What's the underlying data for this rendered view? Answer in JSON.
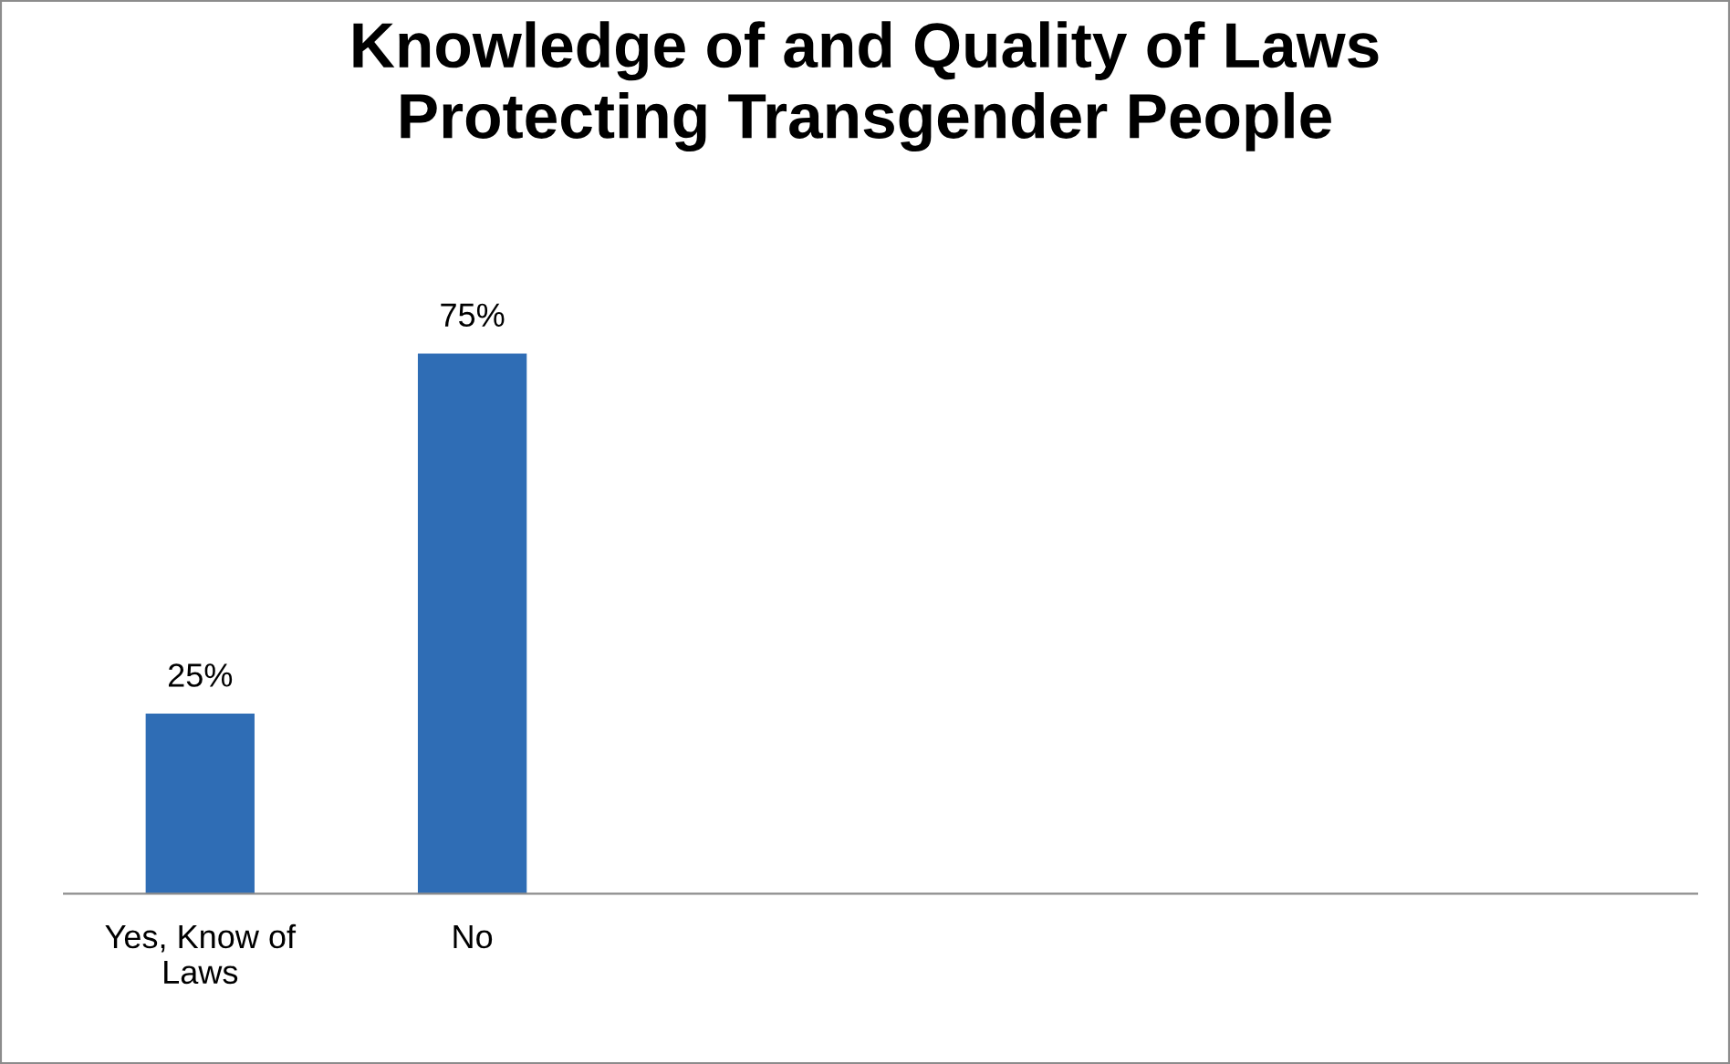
{
  "chart_data": {
    "type": "bar",
    "title": "Knowledge of and Quality of Laws\nProtecting Transgender People",
    "categories": [
      "Yes, Know of Laws",
      "No",
      null,
      null,
      null,
      null
    ],
    "series": [
      {
        "color": "#2f6db5",
        "values": [
          25,
          75,
          null,
          null,
          null,
          null
        ],
        "value_labels": [
          "25%",
          "75%",
          null,
          null,
          null,
          null
        ]
      }
    ],
    "grid": false
  }
}
